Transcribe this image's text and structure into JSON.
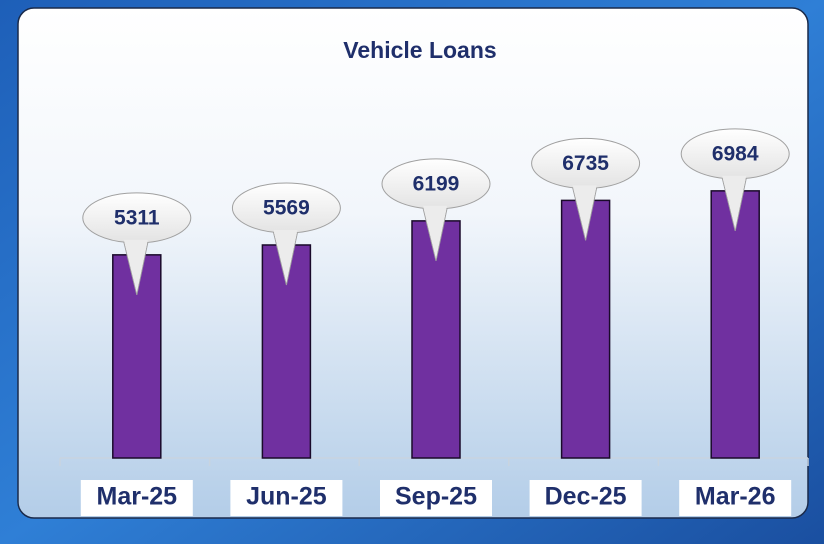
{
  "chart_data": {
    "type": "bar",
    "title": "Vehicle Loans",
    "categories": [
      "Mar-25",
      "Jun-25",
      "Sep-25",
      "Dec-25",
      "Mar-26"
    ],
    "values": [
      5311,
      5569,
      6199,
      6735,
      6984
    ],
    "color": "#7030a0",
    "ylim": [
      0,
      8000
    ]
  }
}
